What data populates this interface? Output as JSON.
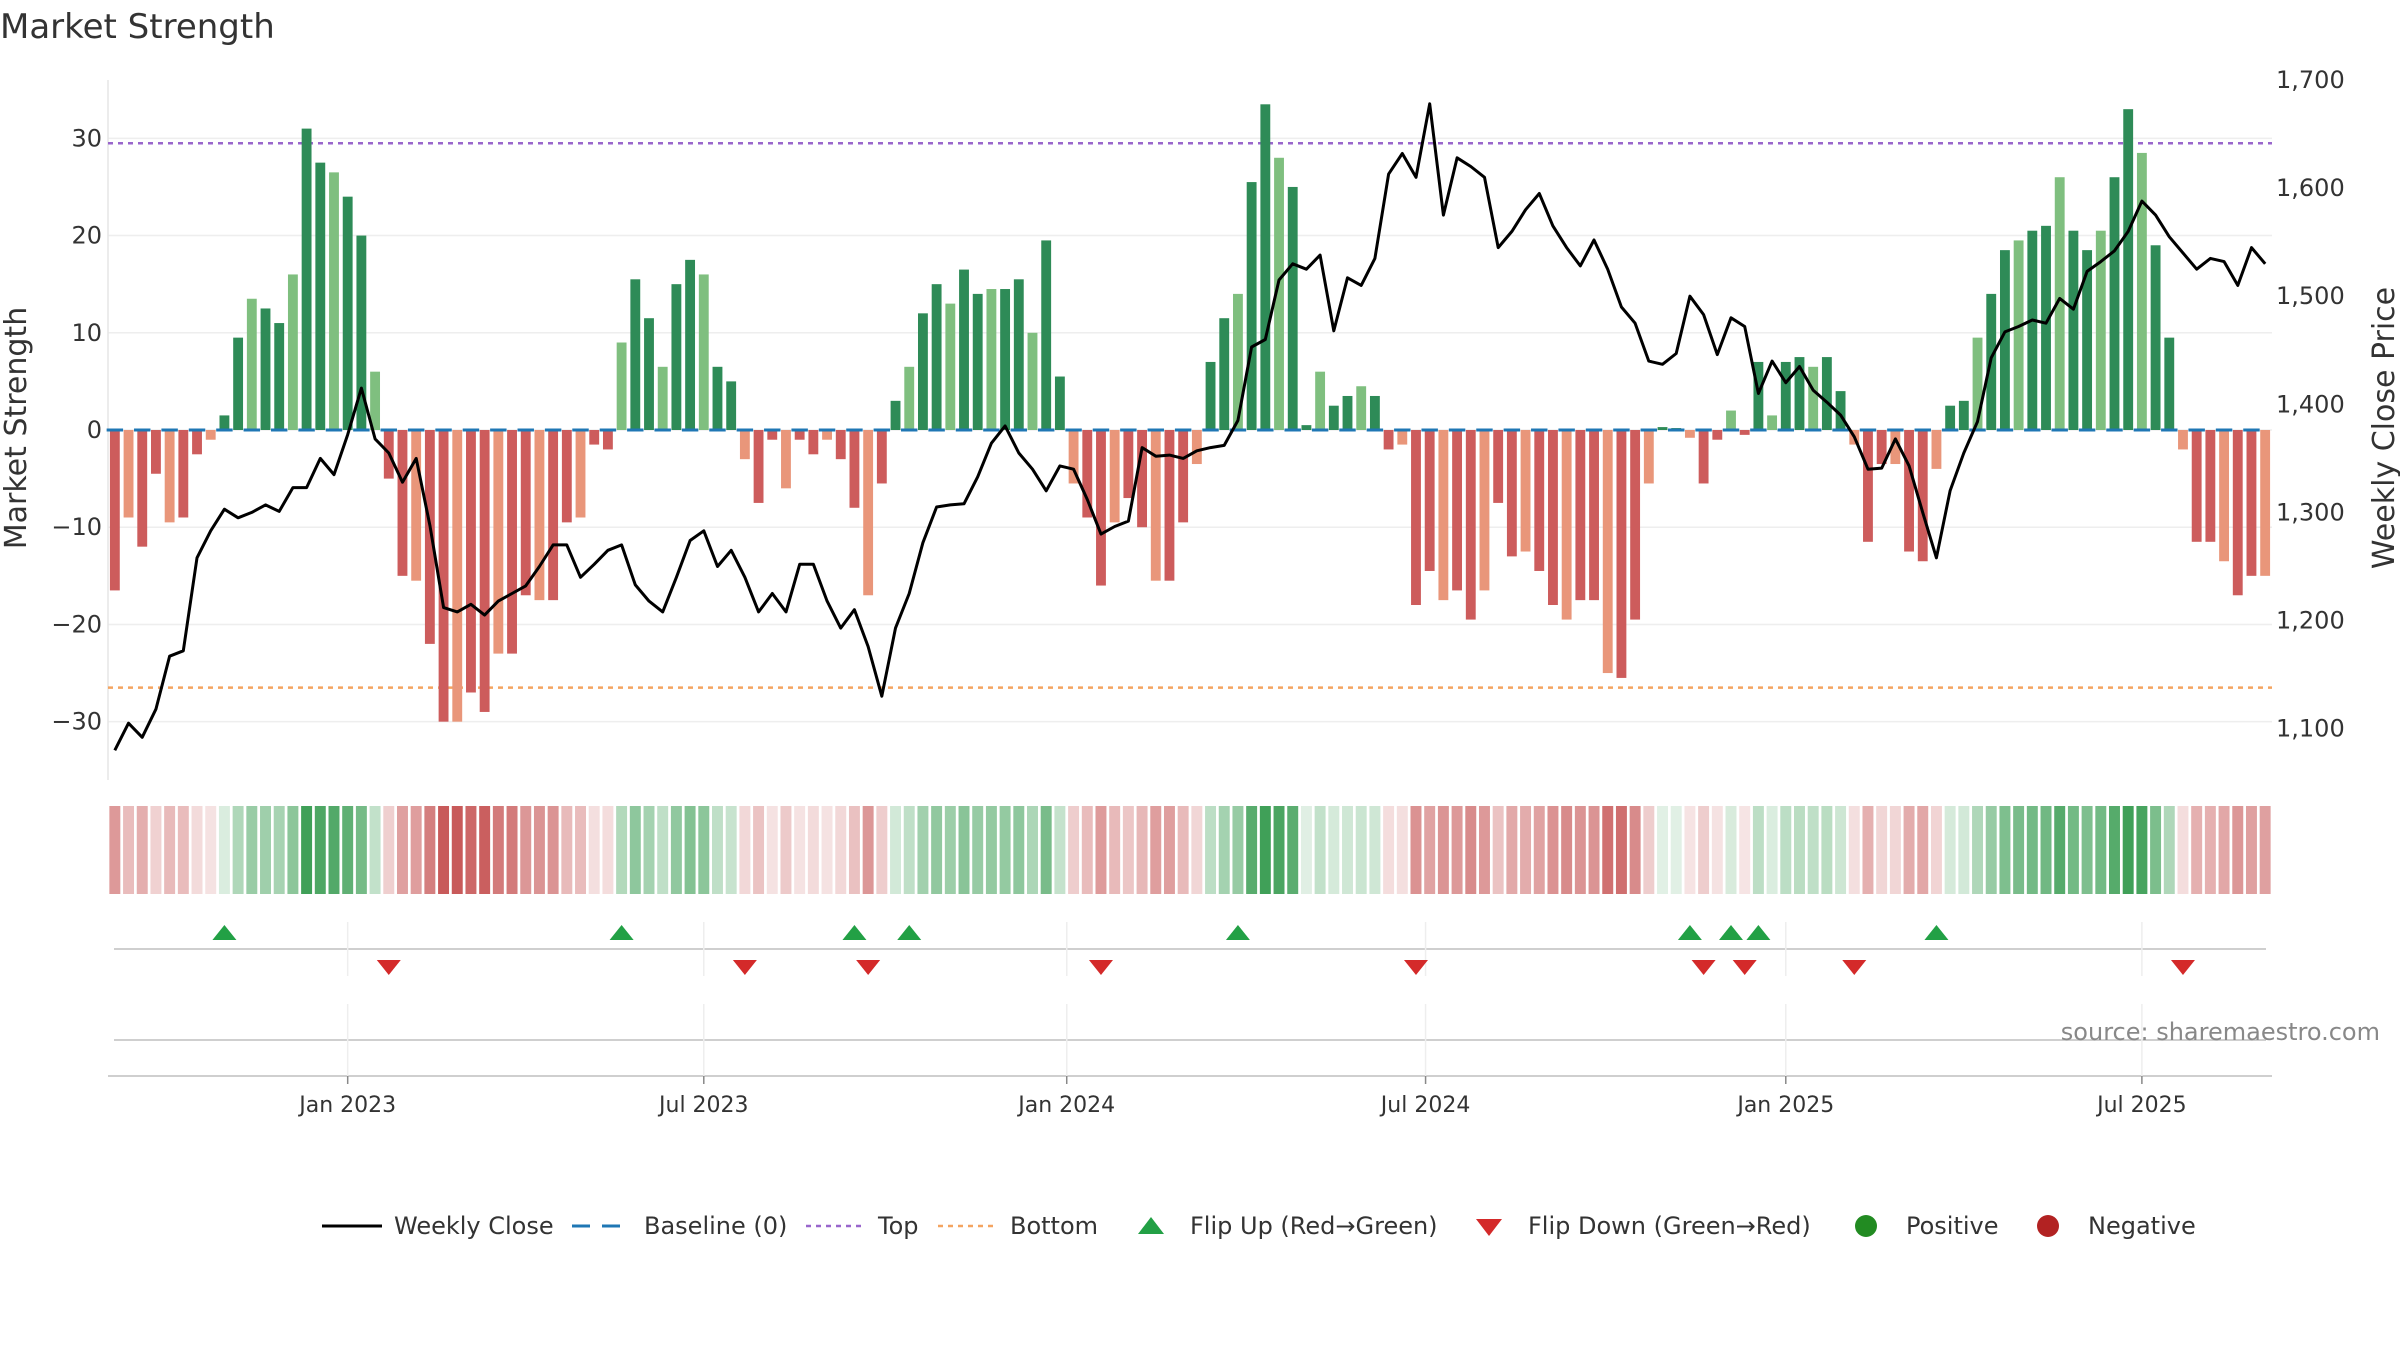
{
  "title": "Market Strength",
  "source": "source: sharemaestro.com",
  "colors": {
    "pos_dark": "#2e8b57",
    "pos_light": "#7fbf7f",
    "neg_dark": "#cd5c5c",
    "neg_light": "#e9967a",
    "top_line": "#9966cc",
    "bottom_line": "#f4a460",
    "baseline": "#1f77b4",
    "close": "#000000",
    "flip_up": "#22a045",
    "flip_down": "#d42a2a",
    "positive": "#228b22",
    "negative": "#b22222"
  },
  "chart_data": {
    "type": "bar",
    "title": "Market Strength",
    "ylabel": "Market Strength",
    "y2label": "Weekly Close Price",
    "ylim": [
      -36,
      36
    ],
    "y2lim": [
      1052.5,
      1700
    ],
    "yticks": [
      {
        "v": 30,
        "label": "30"
      },
      {
        "v": 20,
        "label": "20"
      },
      {
        "v": 10,
        "label": "10"
      },
      {
        "v": 0,
        "label": "0"
      },
      {
        "v": -10,
        "label": "−10"
      },
      {
        "v": -20,
        "label": "−20"
      },
      {
        "v": -30,
        "label": "−30"
      }
    ],
    "y2ticks": [
      {
        "v": 1700,
        "label": "1,700"
      },
      {
        "v": 1600,
        "label": "1,600"
      },
      {
        "v": 1500,
        "label": "1,500"
      },
      {
        "v": 1400,
        "label": "1,400"
      },
      {
        "v": 1300,
        "label": "1,300"
      },
      {
        "v": 1200,
        "label": "1,200"
      },
      {
        "v": 1100,
        "label": "1,100"
      }
    ],
    "xticks": [
      {
        "label": "Jan 2023",
        "week": 17
      },
      {
        "label": "Jul 2023",
        "week": 43
      },
      {
        "label": "Jan 2024",
        "week": 69.5
      },
      {
        "label": "Jul 2024",
        "week": 95.7
      },
      {
        "label": "Jan 2025",
        "week": 122
      },
      {
        "label": "Jul 2025",
        "week": 148
      }
    ],
    "top_level": 29.5,
    "bottom_level": -26.5,
    "strength": [
      -16.5,
      -9,
      -12,
      -4.5,
      -9.5,
      -9,
      -2.5,
      -1,
      1.5,
      9.5,
      13.5,
      12.5,
      11,
      16,
      31,
      27.5,
      26.5,
      24,
      20,
      6,
      -5,
      -15,
      -15.5,
      -22,
      -30,
      -30,
      -27,
      -29,
      -23,
      -23,
      -17,
      -17.5,
      -17.5,
      -9.5,
      -9,
      -1.5,
      -2,
      9,
      15.5,
      11.5,
      6.5,
      15,
      17.5,
      16,
      6.5,
      5,
      -3,
      -7.5,
      -1,
      -6,
      -1,
      -2.5,
      -1,
      -3,
      -8,
      -17,
      -5.5,
      3,
      6.5,
      12,
      15,
      13,
      16.5,
      14,
      14.5,
      14.5,
      15.5,
      10,
      19.5,
      5.5,
      -5.5,
      -9,
      -16,
      -9.5,
      -7,
      -10,
      -15.5,
      -15.5,
      -9.5,
      -3.5,
      7,
      11.5,
      14,
      25.5,
      33.5,
      28,
      25,
      0.5,
      6,
      2.5,
      3.5,
      4.5,
      3.5,
      -2,
      -1.5,
      -18,
      -14.5,
      -17.5,
      -16.5,
      -19.5,
      -16.5,
      -7.5,
      -13,
      -12.5,
      -14.5,
      -18,
      -19.5,
      -17.5,
      -17.5,
      -25,
      -25.5,
      -19.5,
      -5.5,
      0.3,
      0.2,
      -0.8,
      -5.5,
      -1,
      2,
      -0.5,
      7,
      1.5,
      7,
      7.5,
      6.5,
      7.5,
      4,
      -1.5,
      -11.5,
      -3.5,
      -3.5,
      -12.5,
      -13.5,
      -4,
      2.5,
      3,
      9.5,
      14,
      18.5,
      19.5,
      20.5,
      21,
      26,
      20.5,
      18.5,
      20.5,
      26,
      33,
      28.5,
      19,
      9.5,
      -2,
      -11.5,
      -11.5,
      -13.5,
      -17,
      -15,
      -15
    ],
    "close": [
      1080,
      1105,
      1092,
      1118,
      1167,
      1172,
      1258,
      1283,
      1303,
      1295,
      1300,
      1307,
      1301,
      1323,
      1323,
      1350,
      1335,
      1372,
      1415,
      1368,
      1355,
      1328,
      1350,
      1288,
      1212,
      1208,
      1215,
      1205,
      1218,
      1225,
      1232,
      1250,
      1270,
      1270,
      1240,
      1252,
      1265,
      1270,
      1233,
      1218,
      1208,
      1240,
      1274,
      1283,
      1250,
      1265,
      1240,
      1208,
      1225,
      1208,
      1252,
      1252,
      1218,
      1193,
      1210,
      1176,
      1130,
      1193,
      1225,
      1272,
      1305,
      1307,
      1308,
      1333,
      1364,
      1380,
      1355,
      1340,
      1320,
      1343,
      1340,
      1312,
      1280,
      1287,
      1292,
      1360,
      1352,
      1353,
      1350,
      1357,
      1360,
      1362,
      1385,
      1453,
      1460,
      1515,
      1530,
      1525,
      1538,
      1468,
      1517,
      1510,
      1535,
      1613,
      1632,
      1610,
      1678,
      1575,
      1628,
      1620,
      1610,
      1545,
      1560,
      1580,
      1595,
      1565,
      1545,
      1528,
      1552,
      1525,
      1490,
      1475,
      1440,
      1437,
      1447,
      1500,
      1483,
      1446,
      1480,
      1472,
      1410,
      1440,
      1420,
      1435,
      1413,
      1402,
      1390,
      1370,
      1340,
      1341,
      1368,
      1343,
      1300,
      1258,
      1320,
      1355,
      1384,
      1443,
      1467,
      1472,
      1478,
      1475,
      1498,
      1488,
      1523,
      1532,
      1542,
      1560,
      1588,
      1575,
      1555,
      1540,
      1525,
      1535,
      1532,
      1510,
      1545,
      1530
    ],
    "flip_up_weeks": [
      8,
      37,
      54,
      58,
      82,
      115,
      118,
      120,
      133
    ],
    "flip_down_weeks": [
      20,
      46,
      55,
      72,
      95,
      116,
      119,
      127,
      151
    ],
    "legend": [
      "Weekly Close",
      "Baseline (0)",
      "Top",
      "Bottom",
      "Flip Up (Red→Green)",
      "Flip Down (Green→Red)",
      "Positive",
      "Negative"
    ]
  }
}
